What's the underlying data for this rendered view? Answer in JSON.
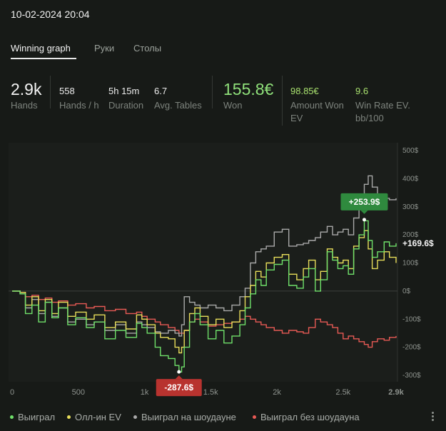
{
  "header": {
    "session_date": "10-02-2024 20:04"
  },
  "tabs": [
    {
      "label": "Winning graph",
      "active": true
    },
    {
      "label": "Руки",
      "active": false
    },
    {
      "label": "Столы",
      "active": false
    }
  ],
  "stats": {
    "hands": {
      "value": "2.9k",
      "label": "Hands"
    },
    "hands_per_hour": {
      "value": "558",
      "label": "Hands / h"
    },
    "duration": {
      "value": "5h 15m",
      "label": "Duration"
    },
    "avg_tables": {
      "value": "6.7",
      "label": "Avg. Tables"
    },
    "won": {
      "value": "155.8€",
      "label": "Won"
    },
    "amount_won_ev": {
      "value": "98.85€",
      "label": "Amount Won EV"
    },
    "win_rate_ev": {
      "value": "9.6",
      "label": "Win Rate EV. bb/100"
    }
  },
  "chart_data": {
    "type": "line",
    "xlim": [
      0,
      2900
    ],
    "ylim": [
      -300,
      500
    ],
    "x_ticks": [
      "0",
      "500",
      "1k",
      "1.5k",
      "2k",
      "2.5k",
      "2.9k"
    ],
    "y_ticks": [
      "500$",
      "400$",
      "300$",
      "200$",
      "100$",
      "0$",
      "-100$",
      "-200$",
      "-300$"
    ],
    "grid": false,
    "legend_position": "bottom",
    "series": [
      {
        "name": "Выиграл",
        "color": "#6fe06a",
        "points": [
          [
            0,
            0
          ],
          [
            60,
            -10
          ],
          [
            100,
            -80
          ],
          [
            150,
            -50
          ],
          [
            200,
            -110
          ],
          [
            250,
            -40
          ],
          [
            300,
            -95
          ],
          [
            350,
            -60
          ],
          [
            420,
            -120
          ],
          [
            480,
            -95
          ],
          [
            560,
            -130
          ],
          [
            620,
            -110
          ],
          [
            700,
            -170
          ],
          [
            780,
            -140
          ],
          [
            860,
            -165
          ],
          [
            940,
            -115
          ],
          [
            980,
            -130
          ],
          [
            1020,
            -150
          ],
          [
            1080,
            -200
          ],
          [
            1120,
            -230
          ],
          [
            1180,
            -240
          ],
          [
            1230,
            -265
          ],
          [
            1260,
            -288
          ],
          [
            1280,
            -270
          ],
          [
            1300,
            -200
          ],
          [
            1340,
            -110
          ],
          [
            1380,
            -80
          ],
          [
            1420,
            -120
          ],
          [
            1480,
            -170
          ],
          [
            1540,
            -140
          ],
          [
            1600,
            -185
          ],
          [
            1660,
            -160
          ],
          [
            1720,
            -120
          ],
          [
            1760,
            -60
          ],
          [
            1800,
            -10
          ],
          [
            1840,
            40
          ],
          [
            1880,
            20
          ],
          [
            1920,
            75
          ],
          [
            1980,
            95
          ],
          [
            2040,
            110
          ],
          [
            2090,
            20
          ],
          [
            2150,
            10
          ],
          [
            2200,
            50
          ],
          [
            2240,
            80
          ],
          [
            2290,
            0
          ],
          [
            2330,
            40
          ],
          [
            2380,
            140
          ],
          [
            2420,
            110
          ],
          [
            2460,
            80
          ],
          [
            2500,
            90
          ],
          [
            2540,
            60
          ],
          [
            2580,
            150
          ],
          [
            2620,
            200
          ],
          [
            2660,
            250
          ],
          [
            2690,
            180
          ],
          [
            2720,
            120
          ],
          [
            2760,
            140
          ],
          [
            2810,
            175
          ],
          [
            2850,
            160
          ],
          [
            2900,
            170
          ]
        ]
      },
      {
        "name": "Олл-ин EV",
        "color": "#e8de5a",
        "points": [
          [
            0,
            0
          ],
          [
            60,
            -5
          ],
          [
            100,
            -50
          ],
          [
            150,
            -20
          ],
          [
            200,
            -70
          ],
          [
            250,
            -30
          ],
          [
            300,
            -80
          ],
          [
            350,
            -40
          ],
          [
            420,
            -90
          ],
          [
            480,
            -75
          ],
          [
            560,
            -100
          ],
          [
            620,
            -85
          ],
          [
            700,
            -130
          ],
          [
            780,
            -110
          ],
          [
            860,
            -135
          ],
          [
            940,
            -85
          ],
          [
            980,
            -100
          ],
          [
            1020,
            -120
          ],
          [
            1080,
            -150
          ],
          [
            1120,
            -165
          ],
          [
            1180,
            -170
          ],
          [
            1230,
            -200
          ],
          [
            1260,
            -220
          ],
          [
            1280,
            -200
          ],
          [
            1300,
            -140
          ],
          [
            1340,
            -80
          ],
          [
            1380,
            -60
          ],
          [
            1420,
            -90
          ],
          [
            1480,
            -120
          ],
          [
            1540,
            -100
          ],
          [
            1600,
            -130
          ],
          [
            1660,
            -110
          ],
          [
            1720,
            -70
          ],
          [
            1760,
            -20
          ],
          [
            1800,
            20
          ],
          [
            1840,
            70
          ],
          [
            1880,
            50
          ],
          [
            1920,
            100
          ],
          [
            1980,
            120
          ],
          [
            2040,
            130
          ],
          [
            2090,
            60
          ],
          [
            2150,
            40
          ],
          [
            2200,
            80
          ],
          [
            2240,
            110
          ],
          [
            2290,
            40
          ],
          [
            2330,
            70
          ],
          [
            2380,
            150
          ],
          [
            2420,
            120
          ],
          [
            2460,
            100
          ],
          [
            2500,
            110
          ],
          [
            2540,
            80
          ],
          [
            2580,
            160
          ],
          [
            2620,
            190
          ],
          [
            2660,
            215
          ],
          [
            2690,
            150
          ],
          [
            2720,
            80
          ],
          [
            2760,
            110
          ],
          [
            2810,
            140
          ],
          [
            2850,
            120
          ],
          [
            2900,
            100
          ]
        ]
      },
      {
        "name": "Выиграл на шоудауне",
        "color": "#a9a9a9",
        "points": [
          [
            0,
            0
          ],
          [
            60,
            -10
          ],
          [
            100,
            -60
          ],
          [
            150,
            -30
          ],
          [
            200,
            -80
          ],
          [
            250,
            -40
          ],
          [
            300,
            -90
          ],
          [
            350,
            -60
          ],
          [
            420,
            -110
          ],
          [
            480,
            -100
          ],
          [
            560,
            -120
          ],
          [
            620,
            -110
          ],
          [
            700,
            -140
          ],
          [
            780,
            -120
          ],
          [
            860,
            -150
          ],
          [
            940,
            -110
          ],
          [
            980,
            -120
          ],
          [
            1020,
            -130
          ],
          [
            1080,
            -145
          ],
          [
            1120,
            -150
          ],
          [
            1180,
            -140
          ],
          [
            1230,
            -150
          ],
          [
            1260,
            -160
          ],
          [
            1280,
            -120
          ],
          [
            1300,
            -20
          ],
          [
            1340,
            -40
          ],
          [
            1380,
            -50
          ],
          [
            1420,
            -60
          ],
          [
            1480,
            -50
          ],
          [
            1540,
            -60
          ],
          [
            1600,
            -70
          ],
          [
            1660,
            -50
          ],
          [
            1720,
            -20
          ],
          [
            1760,
            10
          ],
          [
            1800,
            100
          ],
          [
            1840,
            140
          ],
          [
            1880,
            150
          ],
          [
            1920,
            160
          ],
          [
            1980,
            210
          ],
          [
            2040,
            220
          ],
          [
            2090,
            160
          ],
          [
            2150,
            165
          ],
          [
            2200,
            170
          ],
          [
            2240,
            180
          ],
          [
            2290,
            190
          ],
          [
            2330,
            210
          ],
          [
            2380,
            230
          ],
          [
            2420,
            200
          ],
          [
            2460,
            210
          ],
          [
            2500,
            220
          ],
          [
            2540,
            200
          ],
          [
            2580,
            260
          ],
          [
            2620,
            340
          ],
          [
            2660,
            380
          ],
          [
            2690,
            410
          ],
          [
            2720,
            370
          ],
          [
            2760,
            340
          ],
          [
            2810,
            330
          ],
          [
            2850,
            325
          ],
          [
            2900,
            330
          ]
        ]
      },
      {
        "name": "Выиграл без шоудауна",
        "color": "#e85a55",
        "points": [
          [
            0,
            0
          ],
          [
            60,
            -5
          ],
          [
            100,
            -20
          ],
          [
            150,
            -15
          ],
          [
            200,
            -30
          ],
          [
            250,
            -25
          ],
          [
            300,
            -40
          ],
          [
            350,
            -35
          ],
          [
            420,
            -50
          ],
          [
            480,
            -45
          ],
          [
            560,
            -60
          ],
          [
            620,
            -55
          ],
          [
            700,
            -70
          ],
          [
            780,
            -65
          ],
          [
            860,
            -80
          ],
          [
            940,
            -75
          ],
          [
            980,
            -90
          ],
          [
            1020,
            -100
          ],
          [
            1080,
            -110
          ],
          [
            1120,
            -120
          ],
          [
            1180,
            -130
          ],
          [
            1230,
            -140
          ],
          [
            1260,
            -150
          ],
          [
            1280,
            -150
          ],
          [
            1300,
            -140
          ],
          [
            1340,
            -110
          ],
          [
            1380,
            -100
          ],
          [
            1420,
            -110
          ],
          [
            1480,
            -125
          ],
          [
            1540,
            -120
          ],
          [
            1600,
            -115
          ],
          [
            1660,
            -110
          ],
          [
            1720,
            -100
          ],
          [
            1760,
            -90
          ],
          [
            1800,
            -100
          ],
          [
            1840,
            -110
          ],
          [
            1880,
            -120
          ],
          [
            1920,
            -130
          ],
          [
            1980,
            -140
          ],
          [
            2040,
            -150
          ],
          [
            2090,
            -140
          ],
          [
            2150,
            -145
          ],
          [
            2200,
            -150
          ],
          [
            2240,
            -130
          ],
          [
            2290,
            -100
          ],
          [
            2330,
            -110
          ],
          [
            2380,
            -120
          ],
          [
            2420,
            -130
          ],
          [
            2460,
            -150
          ],
          [
            2500,
            -170
          ],
          [
            2540,
            -160
          ],
          [
            2580,
            -170
          ],
          [
            2620,
            -180
          ],
          [
            2660,
            -190
          ],
          [
            2690,
            -200
          ],
          [
            2720,
            -180
          ],
          [
            2760,
            -170
          ],
          [
            2810,
            -175
          ],
          [
            2850,
            -165
          ],
          [
            2900,
            -160
          ]
        ]
      }
    ],
    "annotations": {
      "max_label": "+253.9$",
      "min_label": "-287.6$",
      "current_label": "+169.6$",
      "max_point": [
        2660,
        253.9
      ],
      "min_point": [
        1260,
        -287.6
      ],
      "x_end_label": "2.9k"
    }
  },
  "legend": [
    {
      "label": "Выиграл",
      "color": "#6fe06a"
    },
    {
      "label": "Олл-ин EV",
      "color": "#e8de5a"
    },
    {
      "label": "Выиграл на шоудауне",
      "color": "#a9a9a9"
    },
    {
      "label": "Выиграл без шоудауна",
      "color": "#e85a55"
    }
  ],
  "icons": {
    "more_menu": "more-vertical-icon"
  }
}
